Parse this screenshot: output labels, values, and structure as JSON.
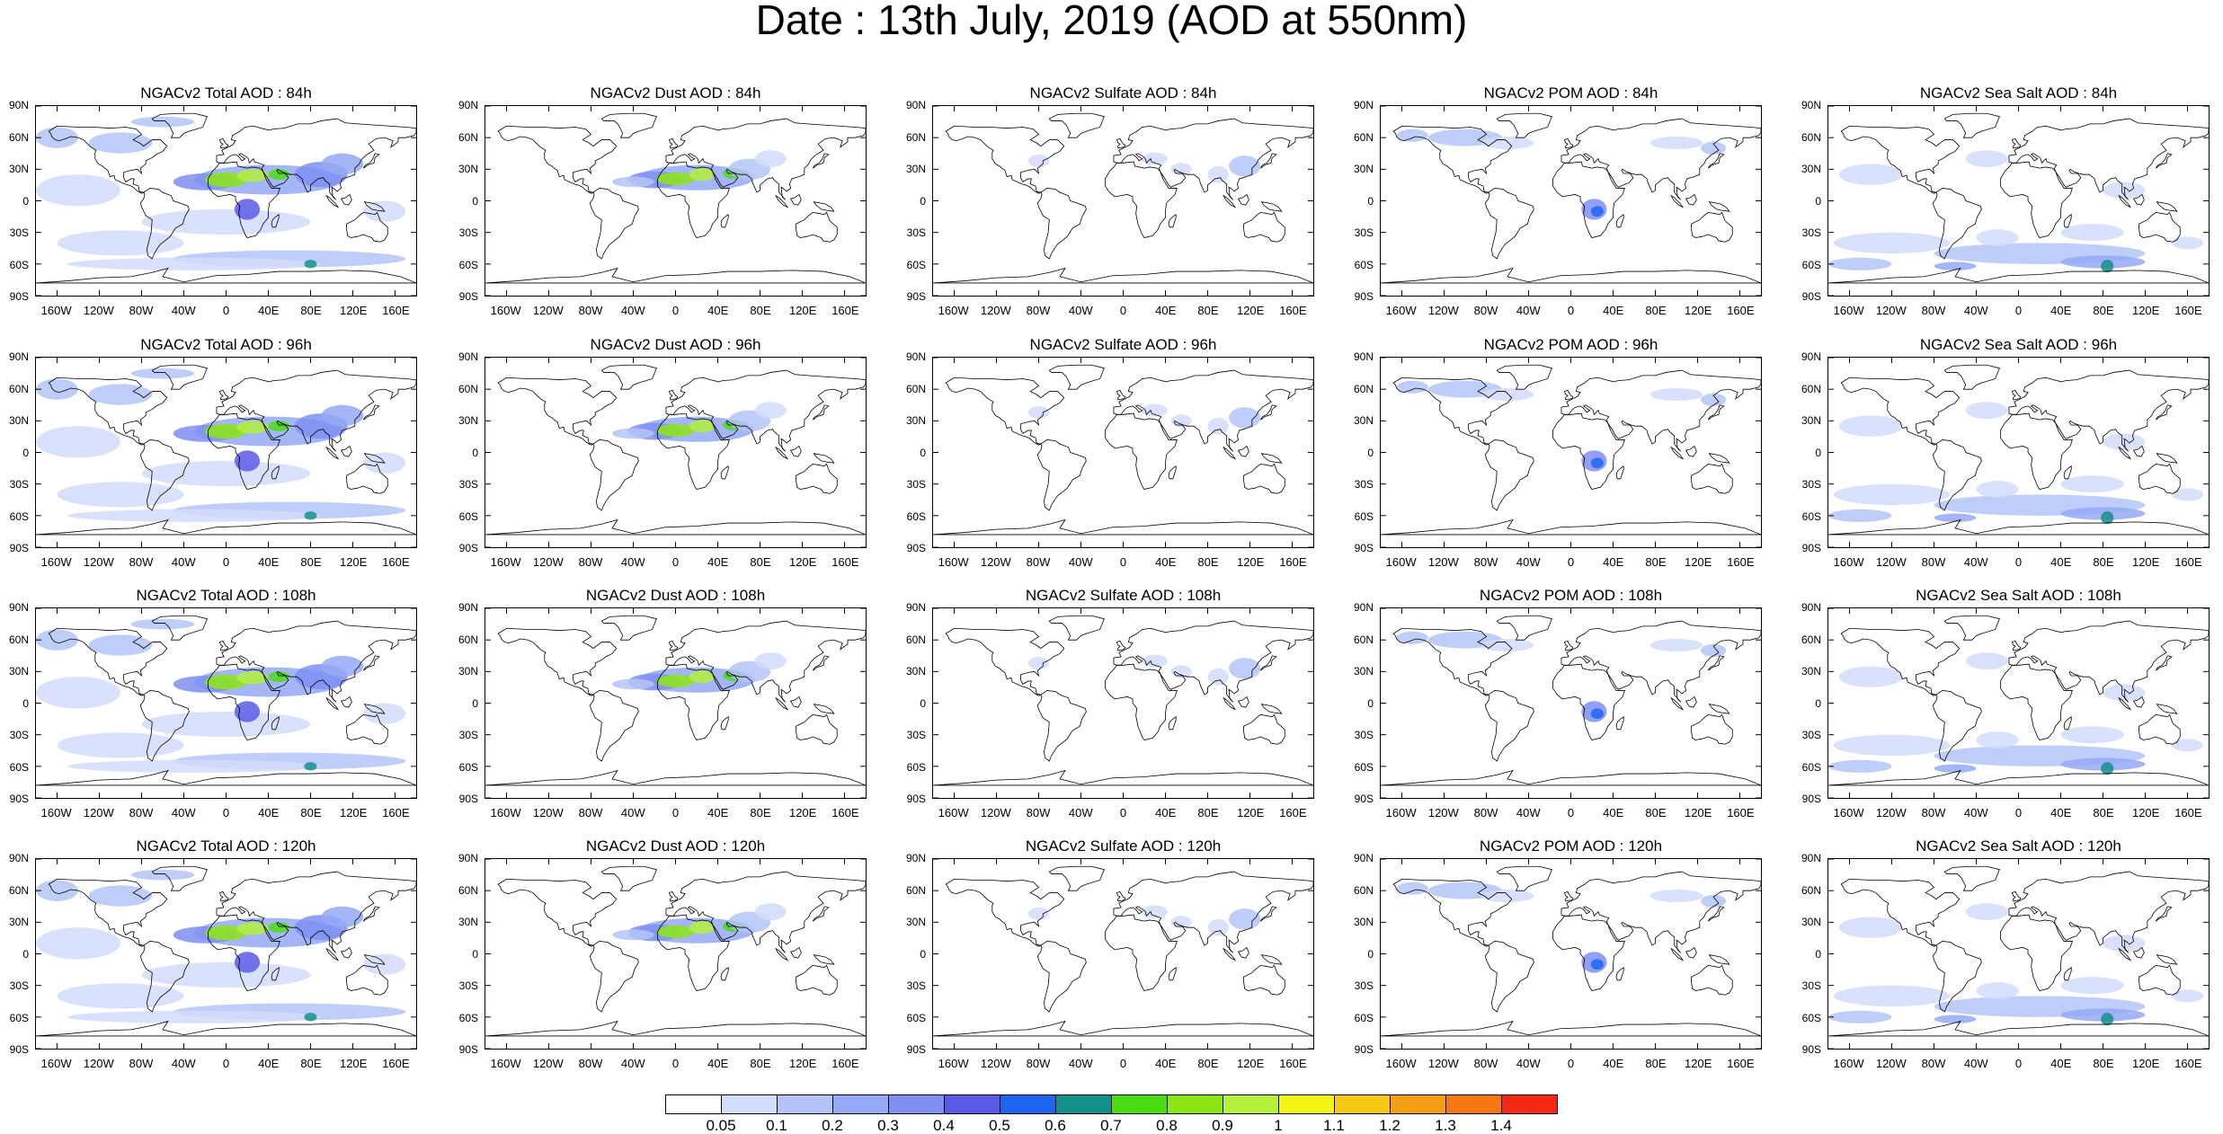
{
  "title": "Date : 13th July, 2019 (AOD at 550nm)",
  "panels": [
    {
      "title": "NGACv2 Total AOD : 84h",
      "field": "total"
    },
    {
      "title": "NGACv2 Dust AOD : 84h",
      "field": "dust"
    },
    {
      "title": "NGACv2 Sulfate AOD : 84h",
      "field": "sulfate"
    },
    {
      "title": "NGACv2 POM AOD : 84h",
      "field": "pom"
    },
    {
      "title": "NGACv2 Sea Salt AOD : 84h",
      "field": "seasalt"
    },
    {
      "title": "NGACv2 Total AOD : 96h",
      "field": "total"
    },
    {
      "title": "NGACv2 Dust AOD : 96h",
      "field": "dust"
    },
    {
      "title": "NGACv2 Sulfate AOD : 96h",
      "field": "sulfate"
    },
    {
      "title": "NGACv2 POM AOD : 96h",
      "field": "pom"
    },
    {
      "title": "NGACv2 Sea Salt AOD : 96h",
      "field": "seasalt"
    },
    {
      "title": "NGACv2 Total AOD : 108h",
      "field": "total"
    },
    {
      "title": "NGACv2 Dust AOD : 108h",
      "field": "dust"
    },
    {
      "title": "NGACv2 Sulfate AOD : 108h",
      "field": "sulfate"
    },
    {
      "title": "NGACv2 POM AOD : 108h",
      "field": "pom"
    },
    {
      "title": "NGACv2 Sea Salt AOD : 108h",
      "field": "seasalt"
    },
    {
      "title": "NGACv2 Total AOD : 120h",
      "field": "total"
    },
    {
      "title": "NGACv2 Dust AOD : 120h",
      "field": "dust"
    },
    {
      "title": "NGACv2 Sulfate AOD : 120h",
      "field": "sulfate"
    },
    {
      "title": "NGACv2 POM AOD : 120h",
      "field": "pom"
    },
    {
      "title": "NGACv2 Sea Salt  AOD : 120h",
      "field": "seasalt"
    }
  ],
  "lat_ticks": [
    "90N",
    "60N",
    "30N",
    "0",
    "30S",
    "60S",
    "90S"
  ],
  "lon_ticks": [
    "160W",
    "120W",
    "80W",
    "40W",
    "0",
    "40E",
    "80E",
    "120E",
    "160E"
  ],
  "colorbar": {
    "labels": [
      "0.05",
      "0.1",
      "0.2",
      "0.3",
      "0.4",
      "0.5",
      "0.6",
      "0.7",
      "0.8",
      "0.9",
      "1",
      "1.1",
      "1.2",
      "1.3",
      "1.4"
    ],
    "colors": [
      "#ffffff",
      "#d4dcfc",
      "#b4c4f8",
      "#95a9f6",
      "#7f8ff2",
      "#5a5ae6",
      "#1e66f0",
      "#14908c",
      "#4cdc14",
      "#8ce614",
      "#b4f03c",
      "#f5f514",
      "#f5c814",
      "#f5a014",
      "#f57814",
      "#f52814"
    ]
  }
}
